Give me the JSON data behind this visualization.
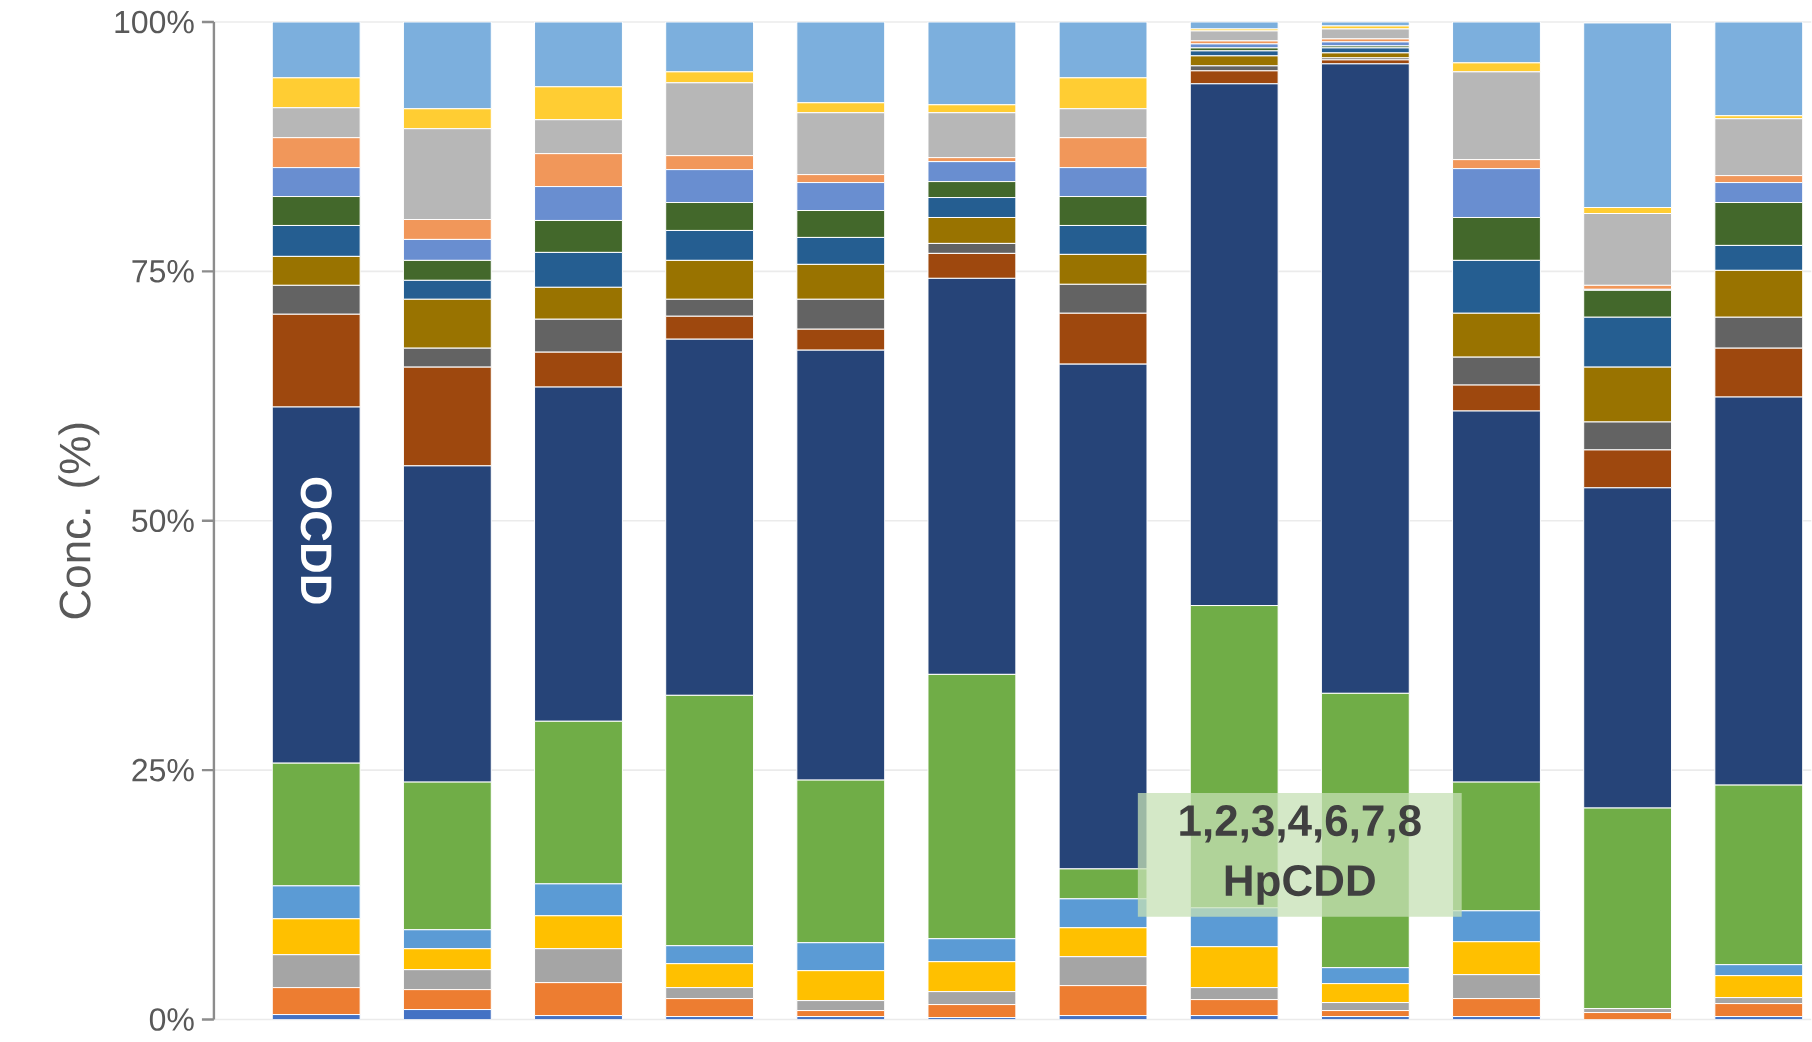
{
  "chart_data": {
    "type": "bar",
    "stacked": true,
    "ylabel": "Conc. (%)",
    "categories": [
      null,
      null,
      null,
      null,
      null,
      null,
      null,
      null,
      null,
      null,
      null,
      null
    ],
    "ylim": [
      0,
      100
    ],
    "yticks": [
      {
        "value": 0,
        "label": "0%"
      },
      {
        "value": 25,
        "label": "25%"
      },
      {
        "value": 50,
        "label": "50%"
      },
      {
        "value": 75,
        "label": "75%"
      },
      {
        "value": 100,
        "label": "100%"
      }
    ],
    "grid": "y",
    "annotations": [
      "OCDD",
      "1,2,3,4,6,7,8 HpCDD"
    ],
    "series": [
      {
        "color": "#4472c4",
        "values": [
          0.5,
          1.0,
          0.4,
          0.3,
          0.3,
          0.2,
          0.4,
          0.4,
          0.3,
          0.3,
          null,
          0.3
        ]
      },
      {
        "color": "#ed7d31",
        "values": [
          2.7,
          2.0,
          3.3,
          1.8,
          0.6,
          1.3,
          3.0,
          1.6,
          0.6,
          1.8,
          0.7,
          1.3
        ]
      },
      {
        "color": "#a5a5a5",
        "values": [
          3.3,
          2.0,
          3.4,
          1.1,
          1.0,
          1.3,
          2.9,
          1.2,
          0.8,
          2.4,
          0.4,
          0.6
        ]
      },
      {
        "color": "#ffc000",
        "values": [
          3.6,
          2.1,
          3.3,
          2.4,
          3.0,
          3.0,
          2.9,
          4.1,
          1.9,
          3.3,
          0,
          2.2
        ]
      },
      {
        "color": "#5b9bd5",
        "values": [
          3.3,
          1.9,
          3.2,
          1.8,
          2.8,
          2.3,
          2.9,
          3.9,
          1.6,
          3.1,
          0,
          1.1
        ]
      },
      {
        "color": "#70ad47",
        "values": [
          12.3,
          14.8,
          16.3,
          25.1,
          16.3,
          26.5,
          3.0,
          30.3,
          27.5,
          12.9,
          20.1,
          18.0
        ]
      },
      {
        "color": "#264478",
        "values": [
          35.7,
          31.7,
          33.5,
          35.7,
          43.1,
          39.7,
          50.6,
          52.3,
          63.1,
          37.2,
          32.1,
          38.9
        ]
      },
      {
        "color": "#9e480e",
        "values": [
          9.3,
          9.9,
          3.5,
          2.3,
          2.1,
          2.5,
          5.1,
          1.3,
          0.4,
          2.6,
          3.8,
          4.9
        ]
      },
      {
        "color": "#636363",
        "values": [
          2.9,
          1.9,
          3.3,
          1.7,
          3.0,
          1.0,
          2.9,
          0.5,
          0.2,
          2.8,
          2.8,
          3.1
        ]
      },
      {
        "color": "#997300",
        "values": [
          2.9,
          4.9,
          3.2,
          3.9,
          3.5,
          2.6,
          3.0,
          1.0,
          0.5,
          4.4,
          5.5,
          4.7
        ]
      },
      {
        "color": "#255e91",
        "values": [
          3.1,
          1.9,
          3.5,
          3.0,
          2.7,
          2.0,
          2.9,
          0.5,
          0.5,
          5.3,
          5.0,
          2.5
        ]
      },
      {
        "color": "#43682b",
        "values": [
          2.9,
          2.0,
          3.2,
          2.8,
          2.7,
          1.6,
          2.9,
          0.3,
          0.2,
          4.3,
          2.7,
          4.3
        ]
      },
      {
        "color": "#698ed0",
        "values": [
          2.9,
          2.1,
          3.4,
          3.3,
          2.8,
          2.0,
          2.9,
          0.4,
          0.4,
          4.9,
          0.1,
          2.0
        ]
      },
      {
        "color": "#f1975a",
        "values": [
          3.0,
          2.0,
          3.3,
          1.4,
          0.8,
          0.4,
          3.0,
          0.3,
          0.3,
          0.9,
          0.4,
          0.7
        ]
      },
      {
        "color": "#b7b7b7",
        "values": [
          3.0,
          9.1,
          3.4,
          7.3,
          6.2,
          4.5,
          2.9,
          1.0,
          1.0,
          8.8,
          7.2,
          5.7
        ]
      },
      {
        "color": "#ffcd33",
        "values": [
          3.0,
          2.0,
          3.3,
          1.1,
          1.0,
          0.8,
          3.1,
          0.2,
          0.3,
          0.9,
          0.6,
          0.3
        ]
      },
      {
        "color": "#7cafdd",
        "values": [
          5.6,
          8.7,
          6.5,
          5.0,
          8.1,
          8.3,
          5.6,
          0.7,
          0.4,
          4.1,
          18.5,
          9.4
        ]
      }
    ]
  }
}
